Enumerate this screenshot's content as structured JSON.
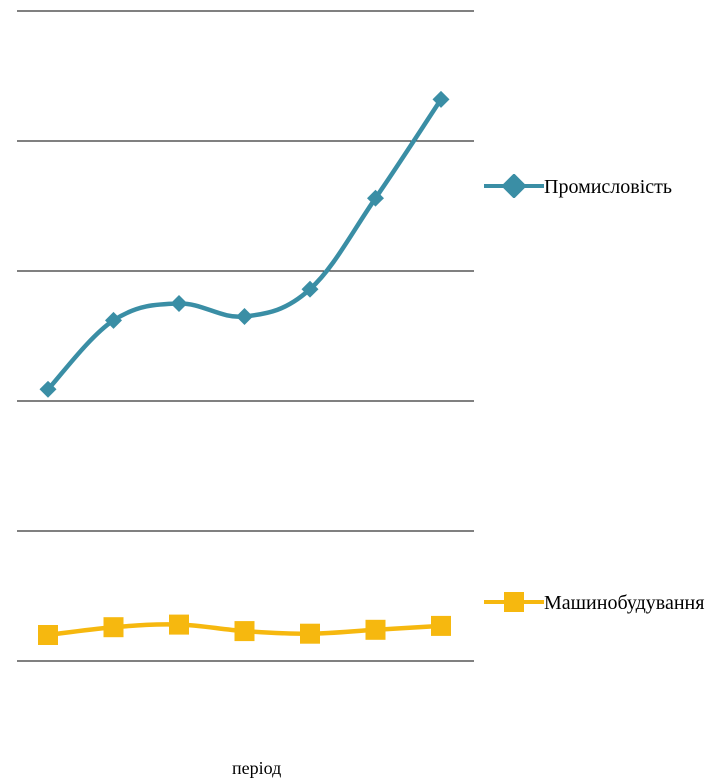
{
  "chart_data": {
    "type": "line",
    "xlabel": "період",
    "ylabel": "",
    "title": "",
    "categories": [
      "",
      "",
      "",
      "",
      "",
      "",
      ""
    ],
    "ylim": [
      0,
      5
    ],
    "grid": true,
    "legend_position": "right",
    "series": [
      {
        "name": "Промисловість",
        "color": "#3a8ea5",
        "marker": "diamond",
        "values": [
          2.09,
          2.62,
          2.75,
          2.65,
          2.86,
          3.56,
          4.32
        ]
      },
      {
        "name": "Машинобудування",
        "color": "#f6b80f",
        "marker": "square",
        "values": [
          0.2,
          0.26,
          0.28,
          0.23,
          0.21,
          0.24,
          0.27
        ]
      }
    ]
  }
}
